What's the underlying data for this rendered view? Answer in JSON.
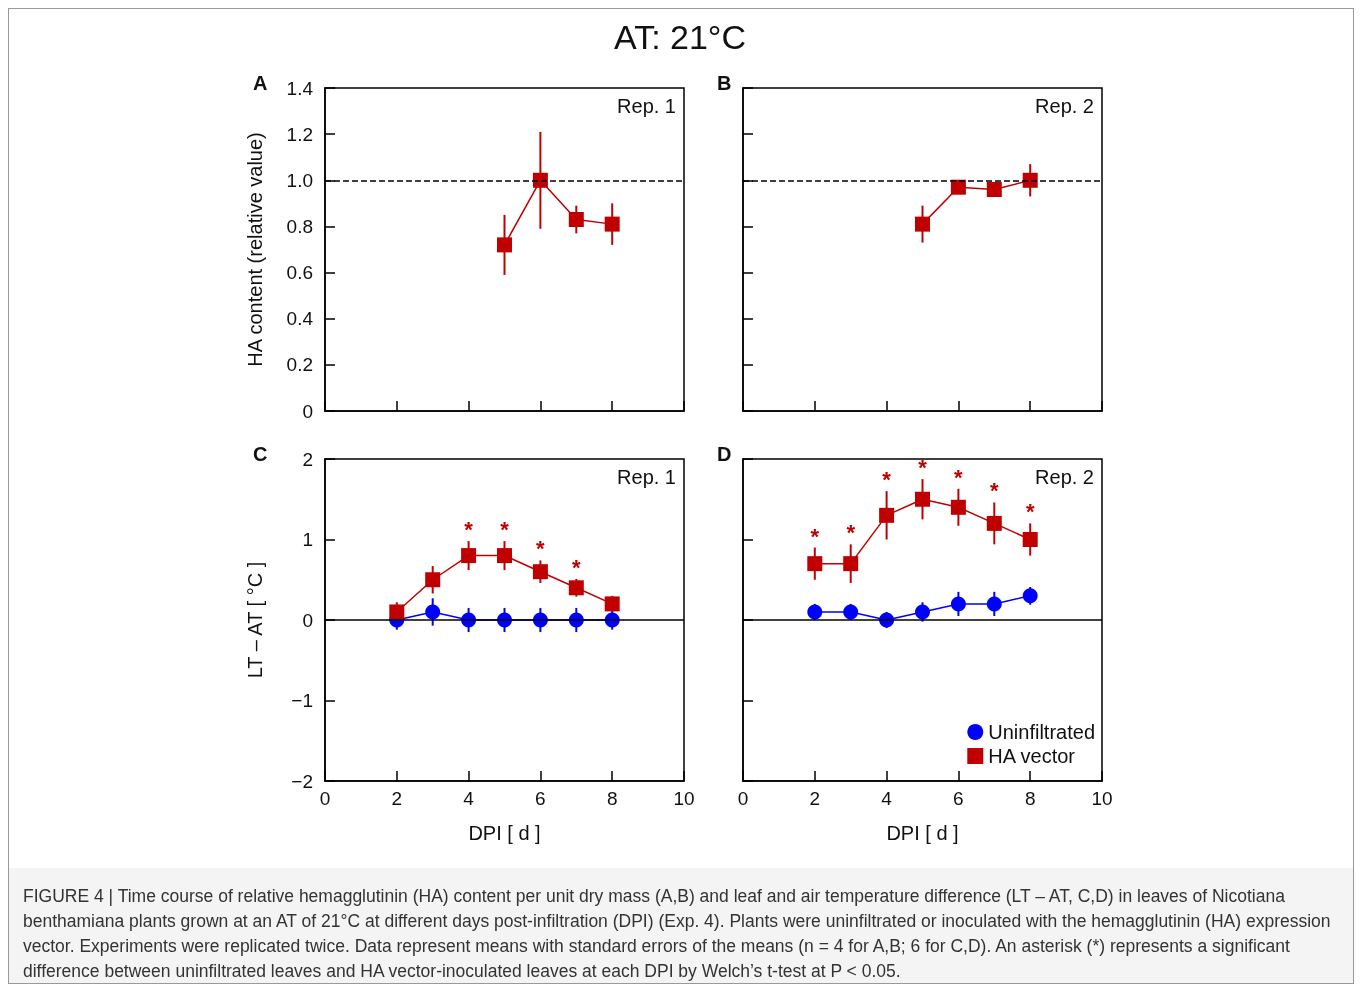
{
  "chart_data": [
    {
      "type": "line",
      "title": "AT: 21°C",
      "ylabel": "HA content (relative value)",
      "annotations": [
        "A",
        "Rep. 1",
        "FIGURE 4 | Time course of relative hemagglutinin (HA) content per unit dry mass (A,B) and leaf and air temperature difference (LT – AT, C,D) in leaves of Nicotiana benthamiana plants grown at an AT of 21°C at different days post-infiltration (DPI) (Exp. 4). Plants were uninfiltrated or inoculated with the hemagglutinin (HA) expression vector. Experiments were replicated twice. Data represent means with standard errors of the means (n = 4 for A,B; 6 for C,D). An asterisk (*) represents a significant difference between uninfiltrated leaves and HA vector-inoculated leaves at each DPI by Welch’s t-test at P < 0.05."
      ],
      "x": [
        5,
        6,
        7,
        8
      ],
      "series": [
        {
          "color": "#c00000",
          "marker": "square",
          "values": [
            0.72,
            1.0,
            0.83,
            0.81
          ],
          "errors": [
            0.13,
            0.21,
            0.06,
            0.09
          ]
        }
      ],
      "xlim": [
        0,
        10
      ],
      "xticks": [
        0,
        2,
        4,
        6,
        8,
        10
      ],
      "ylim": [
        0,
        1.4
      ],
      "yticks": [
        0,
        0.2,
        0.4,
        0.6,
        0.8,
        {
          "value": 1,
          "label": "1.0"
        },
        1.2,
        1.4
      ],
      "tick_labels": "y",
      "ref_lines": [
        {
          "axis": "y",
          "value": 1,
          "line_style": "dashed",
          "color": "#000000"
        }
      ]
    },
    {
      "type": "line",
      "annotations": [
        "B",
        "Rep. 2"
      ],
      "x": [
        5,
        6,
        7,
        8
      ],
      "series": [
        {
          "color": "#c00000",
          "marker": "square",
          "values": [
            0.81,
            0.97,
            0.96,
            1.0
          ],
          "errors": [
            0.08,
            null,
            null,
            0.07
          ]
        }
      ],
      "xlim": [
        0,
        10
      ],
      "xticks": [
        0,
        2,
        4,
        6,
        8,
        10
      ],
      "ylim": [
        0,
        1.4
      ],
      "yticks": [
        0,
        0.2,
        0.4,
        0.6,
        0.8,
        1,
        1.2,
        1.4
      ],
      "tick_labels": false,
      "ref_lines": [
        {
          "axis": "y",
          "value": 1,
          "line_style": "dashed",
          "color": "#000000"
        }
      ]
    },
    {
      "type": "line",
      "xlabel": "DPI [ d ]",
      "ylabel": "LT – AT [ °C ]",
      "annotations": [
        "C",
        "Rep. 1"
      ],
      "x": [
        2,
        3,
        4,
        5,
        6,
        7,
        8
      ],
      "series": [
        {
          "color": "#0000ff",
          "marker": "circle",
          "values": [
            0,
            0.1,
            0,
            0,
            0,
            0,
            0
          ],
          "errors": [
            0.12,
            0.17,
            0.15,
            0.15,
            0.15,
            0.15,
            0.12
          ]
        },
        {
          "color": "#c00000",
          "marker": "square",
          "values": [
            0.1,
            0.5,
            0.8,
            0.8,
            0.6,
            0.4,
            0.2
          ],
          "errors": [
            0.12,
            0.17,
            0.18,
            0.18,
            0.14,
            0.11,
            0.1
          ],
          "value_labels": [
            null,
            null,
            "*",
            "*",
            "*",
            "*",
            null
          ]
        }
      ],
      "xlim": [
        0,
        10
      ],
      "xticks": [
        0,
        2,
        4,
        6,
        8,
        10
      ],
      "ylim": [
        -2,
        2
      ],
      "yticks": [
        {
          "value": -2,
          "label": "−2"
        },
        {
          "value": -1,
          "label": "−1"
        },
        0,
        1,
        2
      ],
      "ref_lines": [
        {
          "axis": "y",
          "value": 0,
          "line_style": "solid",
          "color": "#000000"
        }
      ]
    },
    {
      "type": "line",
      "xlabel": "DPI [ d ]",
      "annotations": [
        "D",
        "Rep. 2"
      ],
      "x": [
        2,
        3,
        4,
        5,
        6,
        7,
        8
      ],
      "series": [
        {
          "name": "Uninfiltrated",
          "color": "#0000ff",
          "marker": "circle",
          "values": [
            0.1,
            0.1,
            0,
            0.1,
            0.2,
            0.2,
            0.3
          ],
          "errors": [
            0.1,
            0.1,
            0.1,
            0.12,
            0.15,
            0.15,
            0.11
          ]
        },
        {
          "name": "HA vector",
          "color": "#c00000",
          "marker": "square",
          "values": [
            0.7,
            0.7,
            1.3,
            1.5,
            1.4,
            1.2,
            1.0
          ],
          "errors": [
            0.2,
            0.24,
            0.3,
            0.25,
            0.23,
            0.26,
            0.2
          ],
          "value_labels": [
            "*",
            "*",
            "*",
            "*",
            "*",
            "*",
            "*"
          ]
        }
      ],
      "xlim": [
        0,
        10
      ],
      "xticks": [
        0,
        2,
        4,
        6,
        8,
        10
      ],
      "ylim": [
        -2,
        2
      ],
      "yticks": [
        -2,
        -1,
        0,
        1,
        2
      ],
      "tick_labels": "x",
      "legend": "bottom right",
      "ref_lines": [
        {
          "axis": "y",
          "value": 0,
          "line_style": "solid",
          "color": "#000000"
        }
      ]
    }
  ]
}
